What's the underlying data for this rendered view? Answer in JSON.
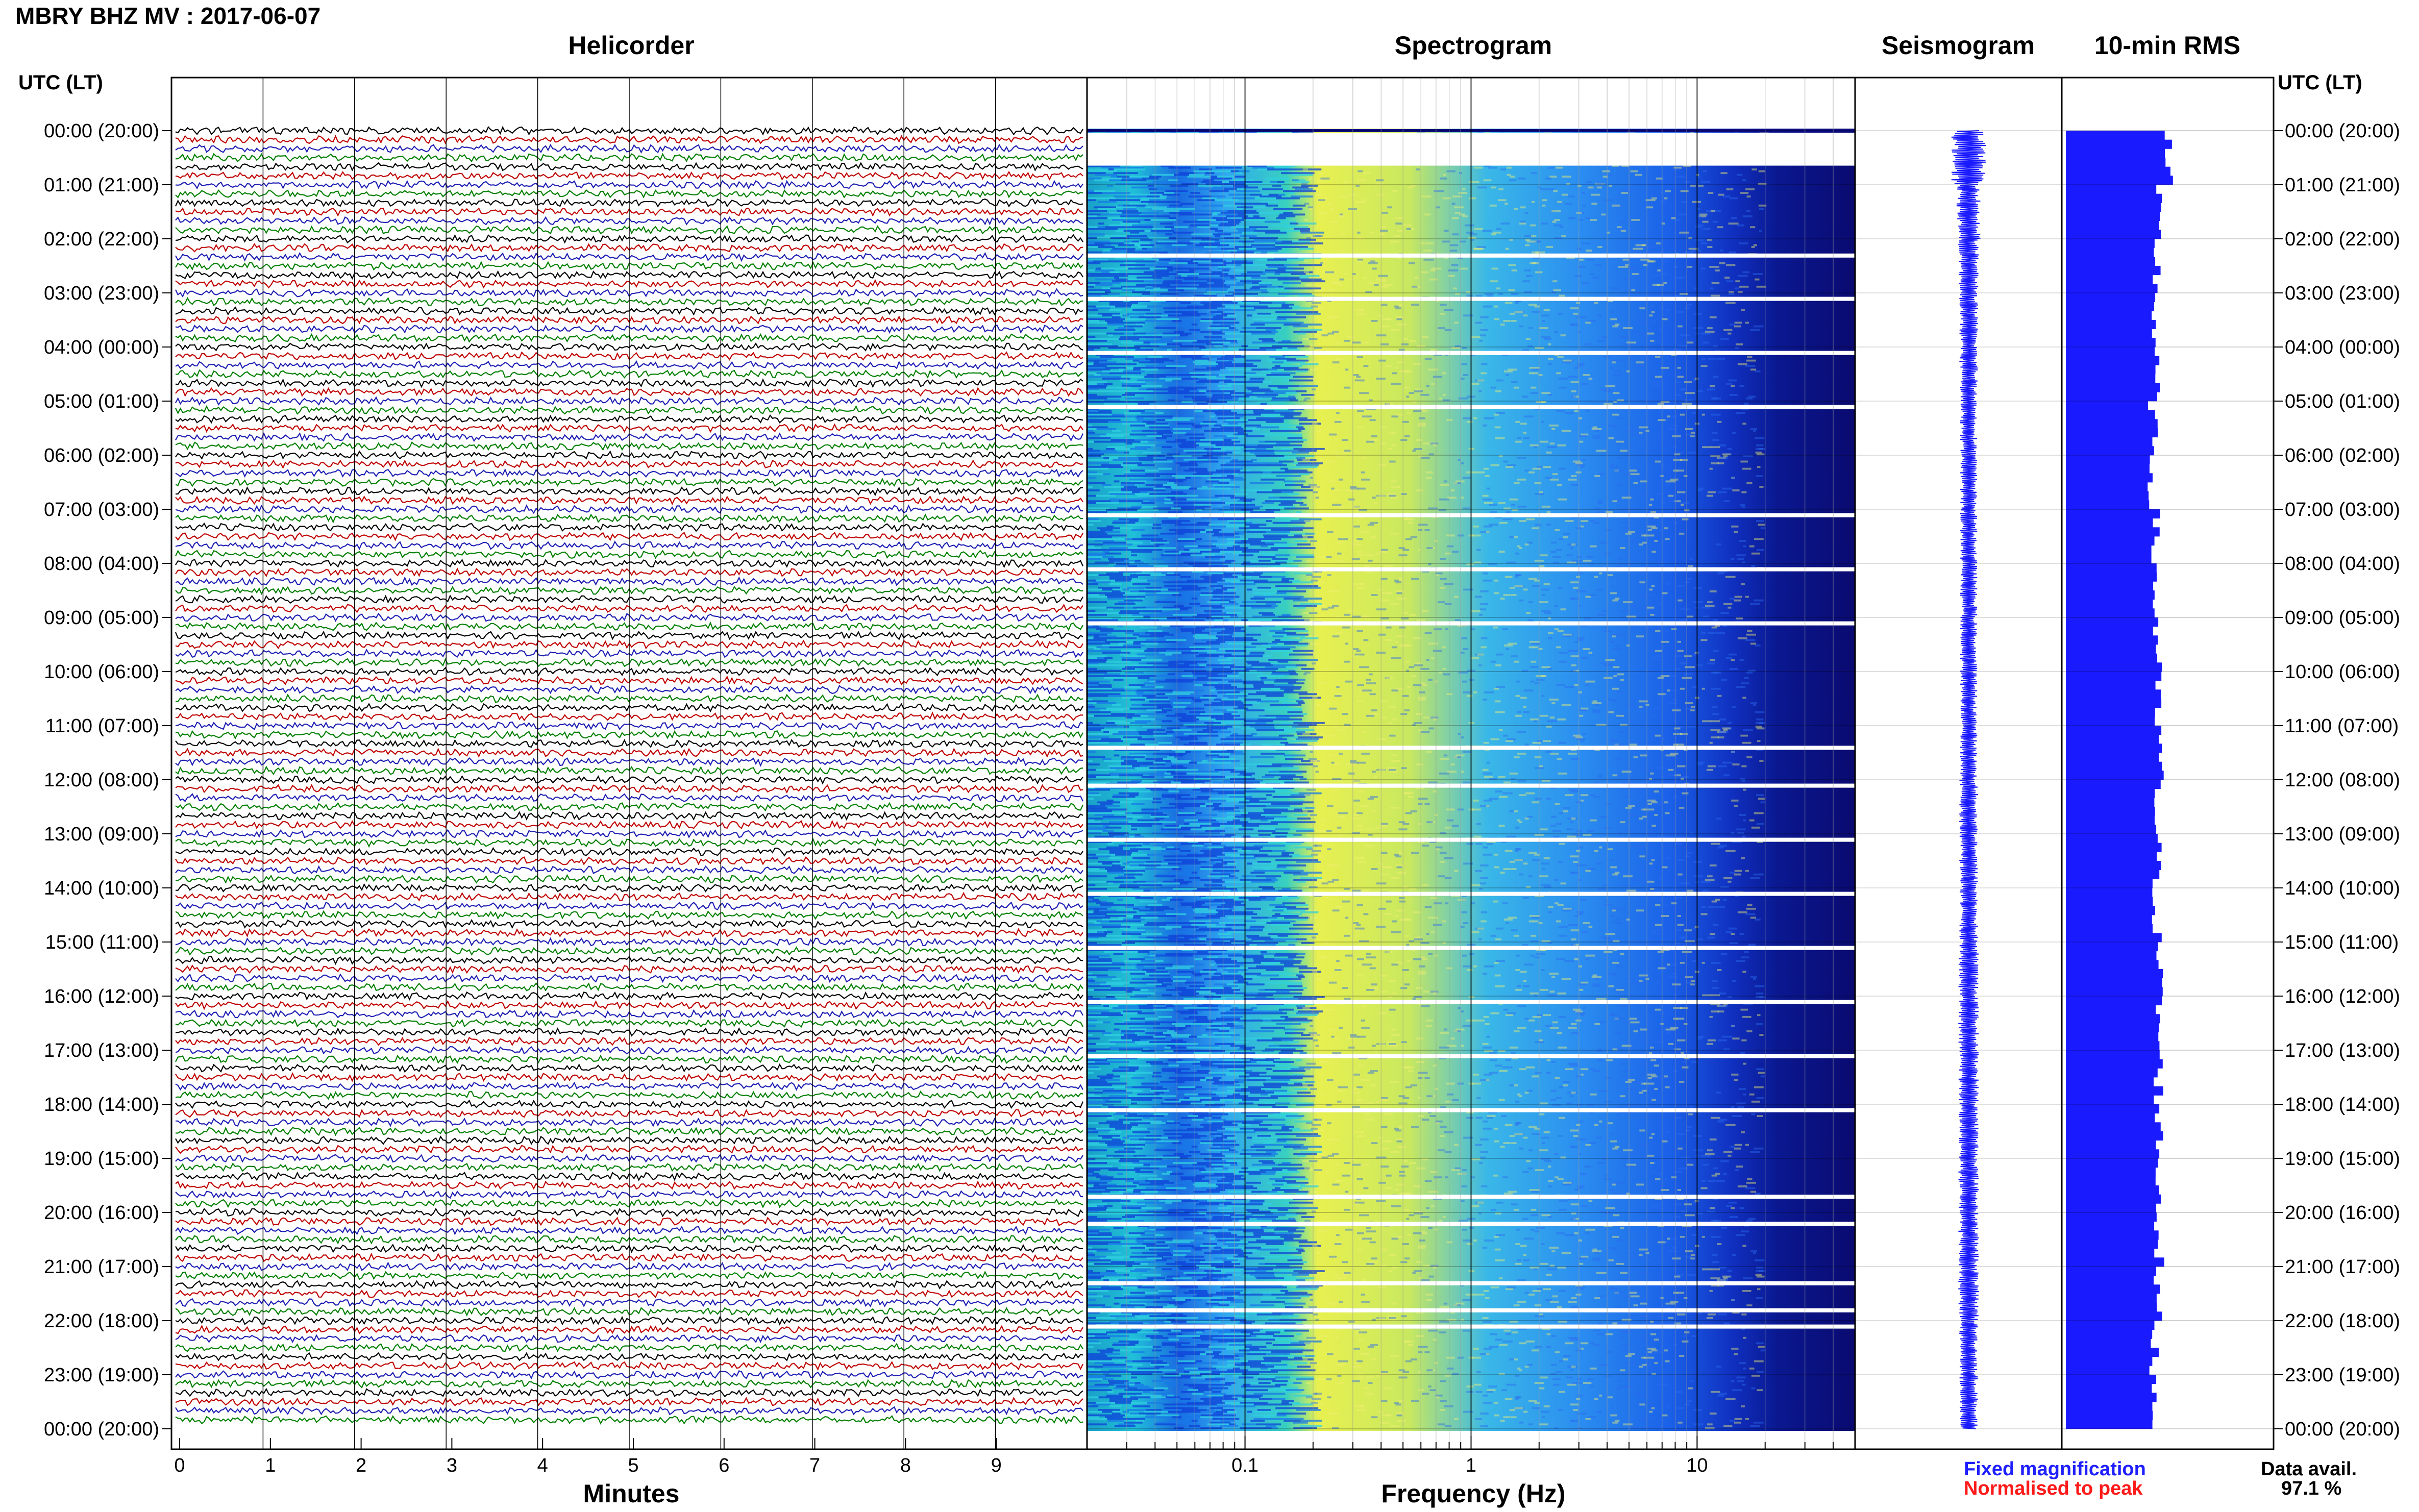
{
  "header": {
    "title": "MBRY BHZ MV : 2017-06-07"
  },
  "panels": {
    "helicorder": "Helicorder",
    "spectrogram": "Spectrogram",
    "seismogram": "Seismogram",
    "rms": "10-min RMS"
  },
  "axis_labels": {
    "left_time": "UTC (LT)",
    "right_time": "UTC (LT)",
    "helicorder_x": "Minutes",
    "spectrogram_x": "Frequency (Hz)"
  },
  "legend": {
    "fixed": "Fixed magnification",
    "normalised": "Normalised to peak"
  },
  "availability": {
    "label": "Data avail.",
    "value": "97.1 %"
  },
  "colors": {
    "trace_cycle": [
      "#000000",
      "#c00000",
      "#1f1fb4",
      "#008000"
    ],
    "seismogram": "#1a1aff",
    "rms": "#1a1aff",
    "spectrogram_low": "#0a0a7a",
    "spectrogram_mid": "#1e90ff",
    "spectrogram_high": "#f0f040"
  },
  "chart_data": [
    {
      "type": "line",
      "name": "helicorder",
      "title": "Helicorder",
      "xlabel": "Minutes",
      "x_ticks": [
        0,
        1,
        2,
        3,
        4,
        5,
        6,
        7,
        8,
        9
      ],
      "xlim": [
        0,
        10
      ],
      "y_ticks": [
        "00:00 (20:00)",
        "01:00 (21:00)",
        "02:00 (22:00)",
        "03:00 (23:00)",
        "04:00 (00:00)",
        "05:00 (01:00)",
        "06:00 (02:00)",
        "07:00 (03:00)",
        "08:00 (04:00)",
        "09:00 (05:00)",
        "10:00 (06:00)",
        "11:00 (07:00)",
        "12:00 (08:00)",
        "13:00 (09:00)",
        "14:00 (10:00)",
        "15:00 (11:00)",
        "16:00 (12:00)",
        "17:00 (13:00)",
        "18:00 (14:00)",
        "19:00 (15:00)",
        "20:00 (16:00)",
        "21:00 (17:00)",
        "22:00 (18:00)",
        "23:00 (19:00)",
        "00:00 (20:00)"
      ],
      "traces_per_hour": 6,
      "trace_minutes": 10
    },
    {
      "type": "heatmap",
      "name": "spectrogram",
      "title": "Spectrogram",
      "xlabel": "Frequency (Hz)",
      "x_scale": "log",
      "x_tick_labels": [
        "0.1",
        "1",
        "10"
      ],
      "x_ticks": [
        0.1,
        1,
        10
      ],
      "xlim": [
        0.02,
        50
      ],
      "peak_band_hz": [
        0.2,
        0.6
      ],
      "gap_rows_hours": [
        0.1,
        0.6,
        2.3,
        3.1,
        4.1,
        5.1,
        7.1,
        8.1,
        9.1,
        11.4,
        12.1,
        13.1,
        14.1,
        15.1,
        16.1,
        17.1,
        18.1,
        19.7,
        20.2,
        21.3,
        21.8,
        22.1
      ]
    },
    {
      "type": "line",
      "name": "seismogram",
      "title": "Seismogram",
      "ylim_hours": [
        0,
        24
      ],
      "amplitude_relative": [
        1.0,
        0.7,
        0.6,
        0.55,
        0.55,
        0.5,
        0.5,
        0.5,
        0.5,
        0.5,
        0.5,
        0.5,
        0.55,
        0.55,
        0.55,
        0.6,
        0.6,
        0.6,
        0.6,
        0.6,
        0.6,
        0.6,
        0.55,
        0.55
      ]
    },
    {
      "type": "bar",
      "name": "10-min RMS",
      "title": "10-min RMS",
      "orientation": "horizontal",
      "bins_per_hour": 6,
      "hours": 24,
      "values_relative_hourly": [
        1.0,
        0.9,
        0.9,
        0.88,
        0.88,
        0.86,
        0.86,
        0.88,
        0.88,
        0.9,
        0.9,
        0.92,
        0.9,
        0.9,
        0.9,
        0.92,
        0.92,
        0.92,
        0.92,
        0.92,
        0.92,
        0.9,
        0.88,
        0.88
      ]
    }
  ]
}
